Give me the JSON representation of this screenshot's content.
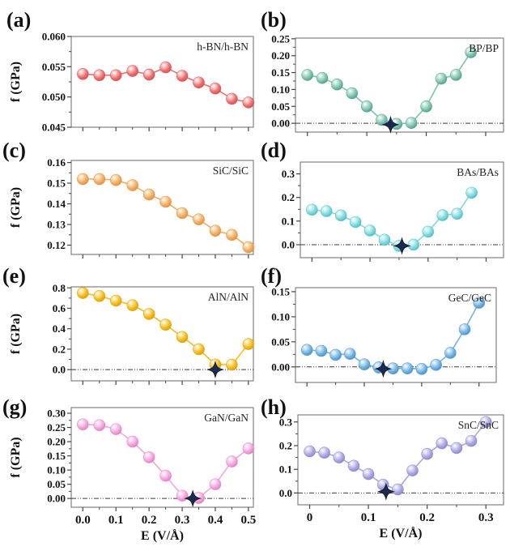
{
  "figure": {
    "xlabel": "E (V/Å)",
    "ylabel": "f (GPa)"
  },
  "chart_data": [
    {
      "id": "a",
      "type": "line",
      "panel_label": "(a)",
      "legend": "h-BN/h-BN",
      "color": {
        "main": "#ee6f6f",
        "light": "#fbc0c0",
        "dark": "#d35050"
      },
      "x": [
        0,
        0.05,
        0.1,
        0.15,
        0.2,
        0.25,
        0.3,
        0.35,
        0.4,
        0.45,
        0.5
      ],
      "y": [
        0.0538,
        0.0536,
        0.0536,
        0.0543,
        0.0537,
        0.0549,
        0.0535,
        0.0524,
        0.0514,
        0.0497,
        0.0491
      ],
      "xlim": [
        -0.035,
        0.515
      ],
      "ylim": [
        0.045,
        0.06
      ],
      "yticks": [
        {
          "v": 0.045,
          "t": "0.045"
        },
        {
          "v": 0.05,
          "t": "0.050"
        },
        {
          "v": 0.055,
          "t": "0.055"
        },
        {
          "v": 0.06,
          "t": "0.060"
        }
      ],
      "xticks": [
        0,
        0.1,
        0.2,
        0.3,
        0.4,
        0.5
      ],
      "xtick_labels": null,
      "ylabel": "f (GPa)",
      "xlabel": null,
      "zero_line": false,
      "star": null
    },
    {
      "id": "b",
      "type": "line",
      "panel_label": "(b)",
      "legend": "BP/BP",
      "color": {
        "main": "#7cc4af",
        "light": "#c2e5d9",
        "dark": "#539e87"
      },
      "x": [
        0,
        0.025,
        0.05,
        0.075,
        0.1,
        0.125,
        0.15,
        0.175,
        0.2,
        0.225,
        0.25,
        0.275
      ],
      "y": [
        0.143,
        0.134,
        0.115,
        0.089,
        0.05,
        0.01,
        -0.002,
        0.001,
        0.05,
        0.132,
        0.143,
        0.21
      ],
      "xlim": [
        -0.02,
        0.33
      ],
      "ylim": [
        -0.026,
        0.252
      ],
      "yticks": [
        {
          "v": 0.0,
          "t": "0.00"
        },
        {
          "v": 0.05,
          "t": "0.05"
        },
        {
          "v": 0.1,
          "t": "0.10"
        },
        {
          "v": 0.15,
          "t": "0.15"
        },
        {
          "v": 0.2,
          "t": "0.20"
        },
        {
          "v": 0.25,
          "t": "0.25"
        }
      ],
      "xticks": [
        0,
        0.1,
        0.2,
        0.3
      ],
      "xtick_labels": null,
      "ylabel": null,
      "xlabel": null,
      "zero_line": true,
      "star": {
        "x": 0.14,
        "y": -0.004
      }
    },
    {
      "id": "c",
      "type": "line",
      "panel_label": "(c)",
      "legend": "SiC/SiC",
      "color": {
        "main": "#f1ae62",
        "light": "#fad9ae",
        "dark": "#e08f43"
      },
      "x": [
        0,
        0.05,
        0.1,
        0.15,
        0.2,
        0.25,
        0.3,
        0.35,
        0.4,
        0.45,
        0.5
      ],
      "y": [
        0.152,
        0.152,
        0.1515,
        0.149,
        0.1445,
        0.141,
        0.1355,
        0.1325,
        0.127,
        0.125,
        0.119
      ],
      "xlim": [
        -0.035,
        0.515
      ],
      "ylim": [
        0.1155,
        0.161
      ],
      "yticks": [
        {
          "v": 0.12,
          "t": "0.12"
        },
        {
          "v": 0.13,
          "t": "0.13"
        },
        {
          "v": 0.14,
          "t": "0.14"
        },
        {
          "v": 0.15,
          "t": "0.15"
        },
        {
          "v": 0.16,
          "t": "0.16"
        }
      ],
      "xticks": [
        0,
        0.1,
        0.2,
        0.3,
        0.4,
        0.5
      ],
      "xtick_labels": null,
      "ylabel": "f (GPa)",
      "xlabel": null,
      "zero_line": false,
      "star": null
    },
    {
      "id": "d",
      "type": "line",
      "panel_label": "(d)",
      "legend": "BAs/BAs",
      "color": {
        "main": "#7edade",
        "light": "#c6f0f2",
        "dark": "#4fbcc2"
      },
      "x": [
        0,
        0.025,
        0.05,
        0.075,
        0.1,
        0.125,
        0.15,
        0.175,
        0.2,
        0.225,
        0.25,
        0.275
      ],
      "y": [
        0.148,
        0.142,
        0.124,
        0.096,
        0.06,
        0.021,
        -0.005,
        0.0,
        0.055,
        0.125,
        0.131,
        0.22
      ],
      "xlim": [
        -0.02,
        0.33
      ],
      "ylim": [
        -0.055,
        0.35
      ],
      "yticks": [
        {
          "v": 0.0,
          "t": "0.0"
        },
        {
          "v": 0.1,
          "t": "0.1"
        },
        {
          "v": 0.2,
          "t": "0.2"
        },
        {
          "v": 0.3,
          "t": "0.3"
        }
      ],
      "xticks": [
        0,
        0.1,
        0.2,
        0.3
      ],
      "xtick_labels": null,
      "ylabel": null,
      "xlabel": null,
      "zero_line": true,
      "star": {
        "x": 0.155,
        "y": -0.005
      }
    },
    {
      "id": "e",
      "type": "line",
      "panel_label": "(e)",
      "legend": "AlN/AlN",
      "color": {
        "main": "#f6ba1e",
        "light": "#fce294",
        "dark": "#dd9f00"
      },
      "x": [
        0,
        0.05,
        0.1,
        0.15,
        0.2,
        0.25,
        0.3,
        0.35,
        0.4,
        0.45,
        0.5
      ],
      "y": [
        0.75,
        0.72,
        0.675,
        0.63,
        0.545,
        0.44,
        0.32,
        0.2,
        0.05,
        0.048,
        0.25
      ],
      "xlim": [
        -0.035,
        0.515
      ],
      "ylim": [
        -0.11,
        0.81
      ],
      "yticks": [
        {
          "v": 0.0,
          "t": "0.0"
        },
        {
          "v": 0.2,
          "t": "0.2"
        },
        {
          "v": 0.4,
          "t": "0.4"
        },
        {
          "v": 0.6,
          "t": "0.6"
        },
        {
          "v": 0.8,
          "t": "0.8"
        }
      ],
      "xticks": [
        0,
        0.1,
        0.2,
        0.3,
        0.4,
        0.5
      ],
      "xtick_labels": null,
      "ylabel": "f (GPa)",
      "xlabel": null,
      "zero_line": true,
      "star": {
        "x": 0.4,
        "y": 0.0
      }
    },
    {
      "id": "f",
      "type": "line",
      "panel_label": "(f)",
      "legend": "GeC/GeC",
      "color": {
        "main": "#70b2e4",
        "light": "#bcdcf4",
        "dark": "#4a90c9"
      },
      "x": [
        0,
        0.025,
        0.05,
        0.075,
        0.1,
        0.125,
        0.15,
        0.175,
        0.2,
        0.225,
        0.25,
        0.275,
        0.3
      ],
      "y": [
        0.034,
        0.032,
        0.024,
        0.026,
        0.005,
        -0.001,
        -0.003,
        -0.003,
        -0.004,
        0.004,
        0.028,
        0.075,
        0.128
      ],
      "xlim": [
        -0.02,
        0.33
      ],
      "ylim": [
        -0.031,
        0.158
      ],
      "yticks": [
        {
          "v": 0.0,
          "t": "0.00"
        },
        {
          "v": 0.05,
          "t": "0.05"
        },
        {
          "v": 0.1,
          "t": "0.10"
        },
        {
          "v": 0.15,
          "t": "0.15"
        }
      ],
      "xticks": [
        0,
        0.1,
        0.2,
        0.3
      ],
      "xtick_labels": null,
      "ylabel": null,
      "xlabel": null,
      "zero_line": true,
      "star": {
        "x": 0.133,
        "y": -0.004
      }
    },
    {
      "id": "g",
      "type": "line",
      "panel_label": "(g)",
      "legend": "GaN/GaN",
      "color": {
        "main": "#f2a6dc",
        "light": "#fad7f0",
        "dark": "#dd7fc3"
      },
      "x": [
        0,
        0.05,
        0.1,
        0.15,
        0.2,
        0.25,
        0.3,
        0.35,
        0.4,
        0.45,
        0.5
      ],
      "y": [
        0.261,
        0.258,
        0.244,
        0.2,
        0.145,
        0.08,
        0.01,
        0.002,
        0.05,
        0.13,
        0.176
      ],
      "xlim": [
        -0.035,
        0.515
      ],
      "ylim": [
        -0.031,
        0.32
      ],
      "yticks": [
        {
          "v": 0.0,
          "t": "0.00"
        },
        {
          "v": 0.05,
          "t": "0.05"
        },
        {
          "v": 0.1,
          "t": "0.10"
        },
        {
          "v": 0.15,
          "t": "0.15"
        },
        {
          "v": 0.2,
          "t": "0.20"
        },
        {
          "v": 0.25,
          "t": "0.25"
        },
        {
          "v": 0.3,
          "t": "0.30"
        }
      ],
      "xticks": [
        0,
        0.1,
        0.2,
        0.3,
        0.4,
        0.5
      ],
      "xtick_labels": [
        "0.0",
        "0.1",
        "0.2",
        "0.3",
        "0.4",
        "0.5"
      ],
      "ylabel": "f (GPa)",
      "xlabel": "E (V/Å)",
      "zero_line": true,
      "star": {
        "x": 0.332,
        "y": 0.0
      }
    },
    {
      "id": "h",
      "type": "line",
      "panel_label": "(h)",
      "legend": "SnC/SnC",
      "color": {
        "main": "#a9a6e0",
        "light": "#d8d6f2",
        "dark": "#8a86cc"
      },
      "x": [
        0,
        0.025,
        0.05,
        0.075,
        0.1,
        0.125,
        0.15,
        0.175,
        0.2,
        0.225,
        0.25,
        0.275,
        0.3
      ],
      "y": [
        0.176,
        0.17,
        0.15,
        0.115,
        0.08,
        0.035,
        0.015,
        0.095,
        0.165,
        0.21,
        0.19,
        0.22,
        0.3
      ],
      "xlim": [
        -0.02,
        0.33
      ],
      "ylim": [
        -0.05,
        0.33
      ],
      "yticks": [
        {
          "v": 0.0,
          "t": "0.0"
        },
        {
          "v": 0.1,
          "t": "0.1"
        },
        {
          "v": 0.2,
          "t": "0.2"
        },
        {
          "v": 0.3,
          "t": "0.3"
        }
      ],
      "xticks": [
        0,
        0.1,
        0.2,
        0.3
      ],
      "xtick_labels": [
        "0",
        "0.1",
        "0.2",
        "0.3"
      ],
      "ylabel": null,
      "xlabel": "E (V/Å)",
      "zero_line": true,
      "star": {
        "x": 0.13,
        "y": 0.006
      }
    }
  ]
}
